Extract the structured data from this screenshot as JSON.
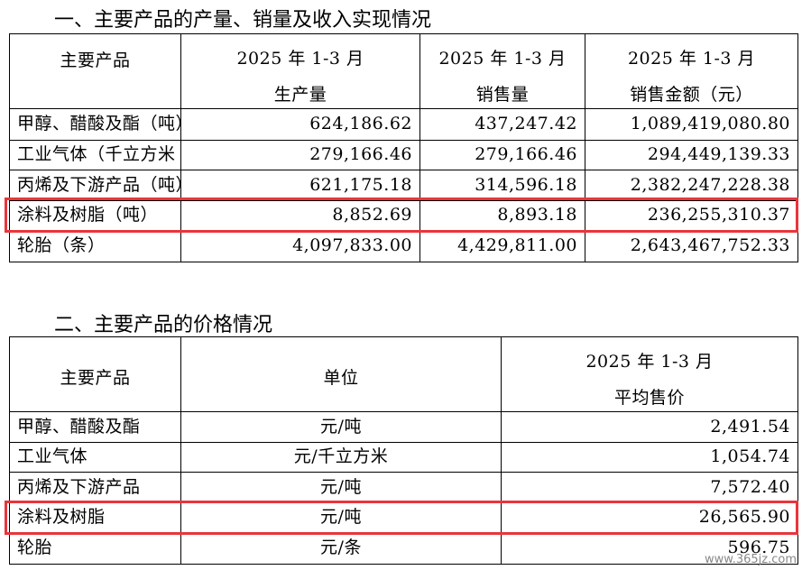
{
  "section1": {
    "title": "一、主要产品的产量、销量及收入实现情况",
    "table": {
      "header": [
        [
          "主要产品"
        ],
        [
          "2025 年 1-3 月",
          "生产量"
        ],
        [
          "2025 年 1-3 月",
          "销售量"
        ],
        [
          "2025 年 1-3 月",
          "销售金额（元）"
        ]
      ],
      "rows": [
        [
          "甲醇、醋酸及酯（吨）",
          "624,186.62",
          "437,247.42",
          "1,089,419,080.80"
        ],
        [
          "工业气体（千立方米",
          "279,166.46",
          "279,166.46",
          "294,449,139.33"
        ],
        [
          "丙烯及下游产品（吨）",
          "621,175.18",
          "314,596.18",
          "2,382,247,228.38"
        ],
        [
          "涂料及树脂（吨）",
          "8,852.69",
          "8,893.18",
          "236,255,310.37"
        ],
        [
          "轮胎（条）",
          "4,097,833.00",
          "4,429,811.00",
          "2,643,467,752.33"
        ]
      ]
    }
  },
  "section2": {
    "title": "二、主要产品的价格情况",
    "table": {
      "header": [
        [
          "主要产品"
        ],
        [
          "单位"
        ],
        [
          "2025 年 1-3 月",
          "平均售价"
        ]
      ],
      "rows": [
        [
          "甲醇、醋酸及酯",
          "元/吨",
          "2,491.54"
        ],
        [
          "工业气体",
          "元/千立方米",
          "1,054.74"
        ],
        [
          "丙烯及下游产品",
          "元/吨",
          "7,572.40"
        ],
        [
          "涂料及树脂",
          "元/吨",
          "26,565.90"
        ],
        [
          "轮胎",
          "元/条",
          "596.75"
        ]
      ]
    }
  },
  "watermark": "www.365jz.com"
}
